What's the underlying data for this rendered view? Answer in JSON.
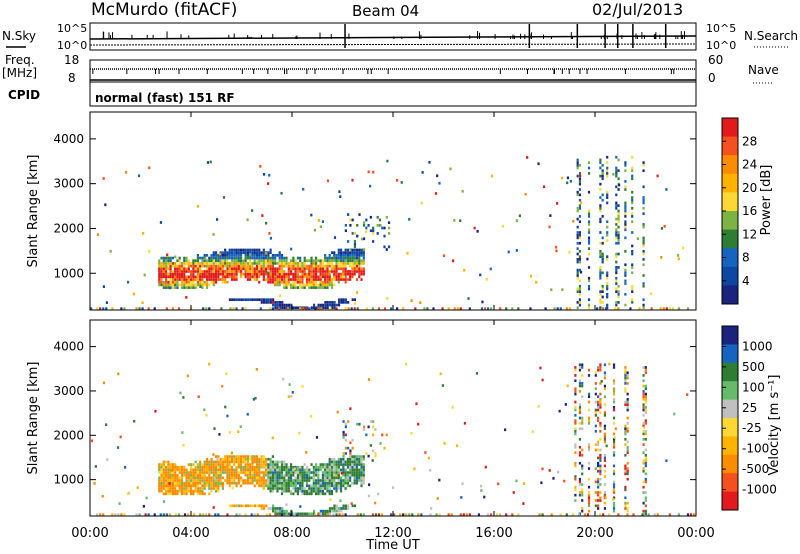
{
  "header": {
    "station": "McMurdo (fitACF)",
    "beam": "Beam 04",
    "date": "02/Jul/2013"
  },
  "status_panels": {
    "nsky_label": "N.Sky",
    "nsearch_label": "N.Search",
    "nsky_ticks": [
      "10^5",
      "10^0"
    ],
    "nsearch_ticks": [
      "10^5",
      "10^0"
    ],
    "freq_label": "Freq.",
    "freq_unit": "[MHz]",
    "freq_ticks": [
      "18",
      "8"
    ],
    "nave_label": "Nave",
    "nave_ticks": [
      "60",
      "0"
    ],
    "cpid_label": "CPID",
    "cpid_value": "normal (fast) 151 RF"
  },
  "chart_data": [
    {
      "type": "heatmap",
      "name": "power",
      "ylabel": "Slant Range [km]",
      "yticks": [
        "1000",
        "2000",
        "3000",
        "4000"
      ],
      "ylim": [
        180,
        4600
      ],
      "xlim": [
        0,
        24
      ],
      "colorbar": {
        "label": "Power [dB]",
        "ticks": [
          "28",
          "24",
          "20",
          "16",
          "12",
          "8",
          "4"
        ],
        "colors": [
          "#e31a1c",
          "#f4511e",
          "#fb8c00",
          "#ffb300",
          "#fdd835",
          "#7cb342",
          "#2e7d32",
          "#1565c0",
          "#0d47a1",
          "#1a237e"
        ]
      },
      "echo_regions": [
        {
          "t0": 2.7,
          "t1": 10.8,
          "r0": 650,
          "r1": 1500,
          "strength": "high"
        },
        {
          "t0": 5.5,
          "t1": 10.5,
          "r0": 200,
          "r1": 400,
          "strength": "high"
        },
        {
          "t0": 10.0,
          "t1": 11.8,
          "r0": 1500,
          "r1": 2300,
          "strength": "low"
        },
        {
          "t0": 19.0,
          "t1": 22.0,
          "r0": 200,
          "r1": 3600,
          "strength": "sparse"
        }
      ]
    },
    {
      "type": "heatmap",
      "name": "velocity",
      "xlabel": "Time UT",
      "ylabel": "Slant Range [km]",
      "xticks": [
        "00:00",
        "04:00",
        "08:00",
        "12:00",
        "16:00",
        "20:00",
        "00:00"
      ],
      "yticks": [
        "1000",
        "2000",
        "3000",
        "4000"
      ],
      "ylim": [
        180,
        4600
      ],
      "xlim": [
        0,
        24
      ],
      "colorbar": {
        "label": "Velocity [m s⁻¹]",
        "ticks": [
          "1000",
          "500",
          "100",
          "25",
          "-25",
          "-100",
          "-500",
          "-1000"
        ],
        "colors": [
          "#1a237e",
          "#1565c0",
          "#2e7d32",
          "#66bb6a",
          "#c0c0c0",
          "#fdd835",
          "#ffb300",
          "#fb8c00",
          "#f4511e",
          "#e31a1c"
        ]
      },
      "echo_regions": [
        {
          "t0": 2.7,
          "t1": 10.8,
          "r0": 650,
          "r1": 1500,
          "strength": "high"
        },
        {
          "t0": 5.5,
          "t1": 10.5,
          "r0": 200,
          "r1": 400,
          "strength": "high"
        },
        {
          "t0": 10.0,
          "t1": 11.8,
          "r0": 1500,
          "r1": 2300,
          "strength": "low"
        },
        {
          "t0": 19.0,
          "t1": 22.0,
          "r0": 200,
          "r1": 3600,
          "strength": "sparse"
        }
      ]
    }
  ]
}
